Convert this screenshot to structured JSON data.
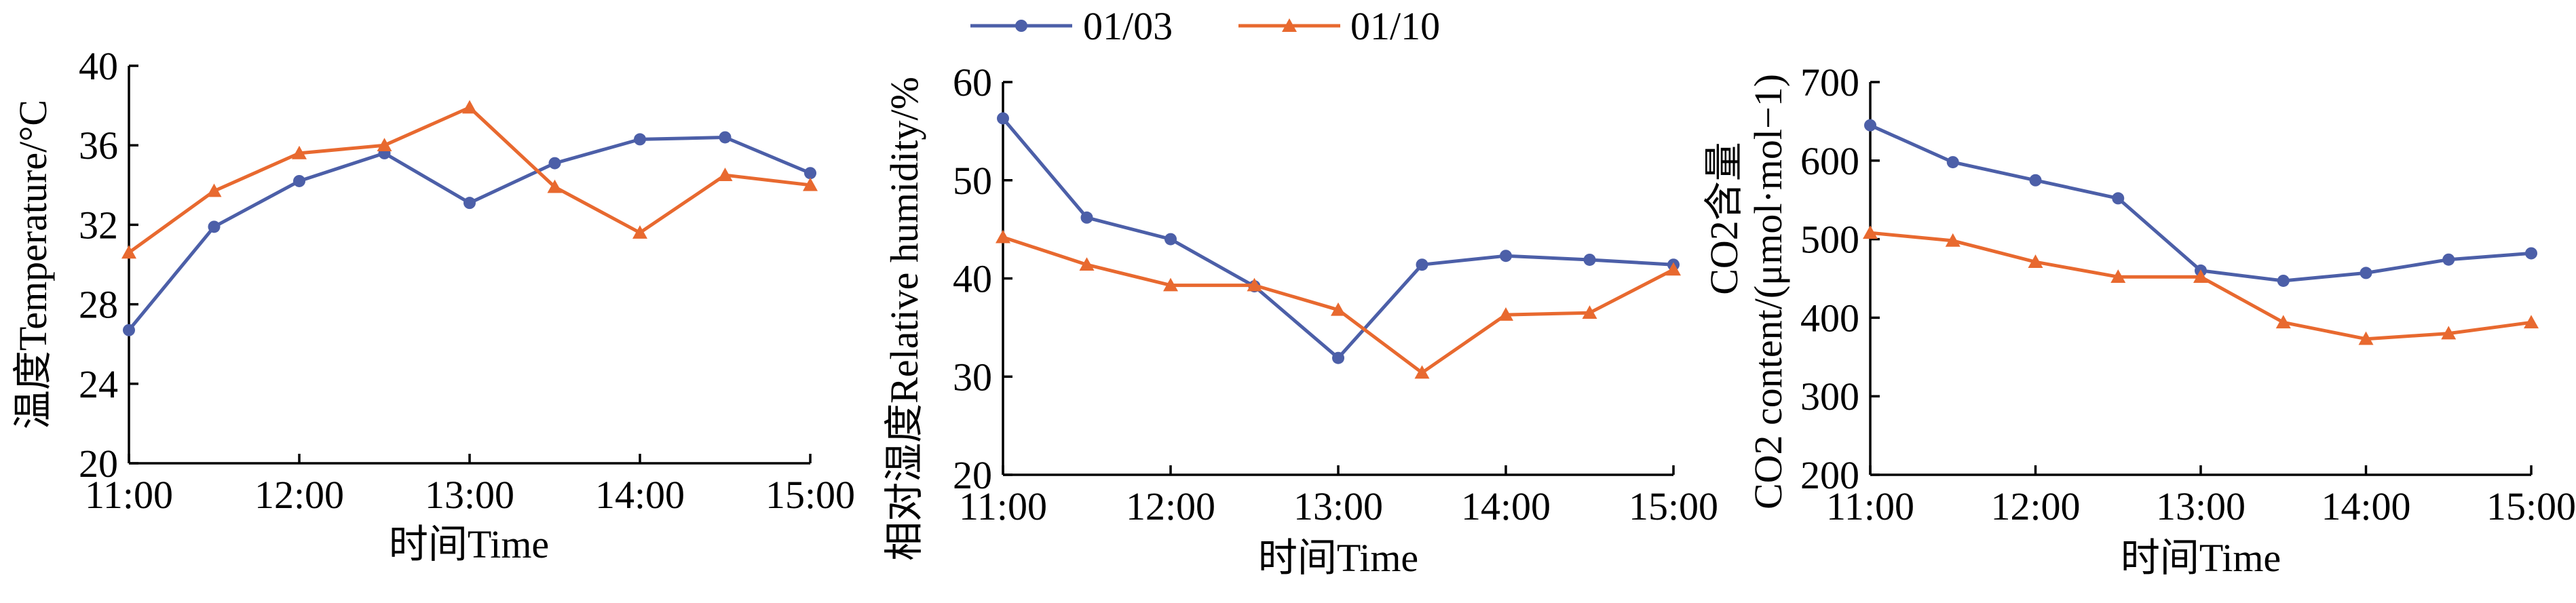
{
  "colors": {
    "series_0103": "#4c5fa8",
    "series_0110": "#e8692f",
    "axis": "#000000"
  },
  "legend": {
    "placement": "top-center",
    "items": [
      {
        "label": "01/03",
        "marker": "circle",
        "color": "#4c5fa8"
      },
      {
        "label": "01/10",
        "marker": "triangle",
        "color": "#e8692f"
      }
    ]
  },
  "chart_data": [
    {
      "type": "line",
      "xlabel": "时间Time",
      "ylabel": "温度Temperature/°C",
      "x_ticks": [
        "11:00",
        "12:00",
        "13:00",
        "14:00",
        "15:00"
      ],
      "x": [
        "11:00",
        "11:30",
        "12:00",
        "12:30",
        "13:00",
        "13:30",
        "14:00",
        "14:30",
        "15:00"
      ],
      "ylim": [
        20,
        40
      ],
      "y_ticks": [
        "20",
        "24",
        "28",
        "32",
        "36",
        "40"
      ],
      "grid": false,
      "series": [
        {
          "name": "01/03",
          "values": [
            26.7,
            31.9,
            34.2,
            35.6,
            33.1,
            35.1,
            36.3,
            36.4,
            34.6
          ]
        },
        {
          "name": "01/10",
          "values": [
            30.6,
            33.7,
            35.6,
            36.0,
            37.9,
            33.9,
            31.6,
            34.5,
            34.0
          ]
        }
      ]
    },
    {
      "type": "line",
      "xlabel": "时间Time",
      "ylabel": "相对湿度Relative humidity/%",
      "x_ticks": [
        "11:00",
        "12:00",
        "13:00",
        "14:00",
        "15:00"
      ],
      "x": [
        "11:00",
        "11:30",
        "12:00",
        "12:30",
        "13:00",
        "13:30",
        "14:00",
        "14:30",
        "15:00"
      ],
      "ylim": [
        20,
        60
      ],
      "y_ticks": [
        "20",
        "30",
        "40",
        "50",
        "60"
      ],
      "grid": false,
      "series": [
        {
          "name": "01/03",
          "values": [
            56.3,
            46.2,
            44.0,
            39.2,
            31.9,
            41.4,
            42.3,
            41.9,
            41.4
          ]
        },
        {
          "name": "01/10",
          "values": [
            44.2,
            41.4,
            39.3,
            39.3,
            36.8,
            30.4,
            36.3,
            36.5,
            40.9
          ]
        }
      ]
    },
    {
      "type": "line",
      "xlabel": "时间Time",
      "ylabel_line1": "CO2含量",
      "ylabel_line2": "CO2 content/(μmol·mol−1)",
      "x_ticks": [
        "11:00",
        "12:00",
        "13:00",
        "14:00",
        "15:00"
      ],
      "x": [
        "11:00",
        "11:30",
        "12:00",
        "12:30",
        "13:00",
        "13:30",
        "14:00",
        "14:30",
        "15:00"
      ],
      "ylim": [
        200,
        700
      ],
      "y_ticks": [
        "200",
        "300",
        "400",
        "500",
        "600",
        "700"
      ],
      "grid": false,
      "series": [
        {
          "name": "01/03",
          "values": [
            645,
            598,
            575,
            552,
            460,
            447,
            457,
            474,
            482
          ]
        },
        {
          "name": "01/10",
          "values": [
            508,
            498,
            471,
            452,
            452,
            394,
            373,
            380,
            394
          ]
        }
      ]
    }
  ]
}
